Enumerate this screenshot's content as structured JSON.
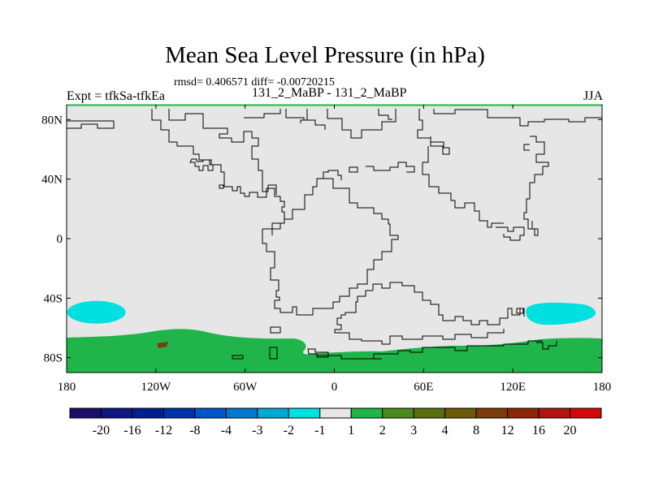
{
  "chart_data": {
    "type": "heatmap",
    "title": "Mean Sea Level Pressure (in hPa)",
    "stats_label": "rmsd= 0.406571 diff= -0.00720215",
    "left_label": "Expt = tfkSa-tfkEa",
    "center_label": "131_2_MaBP - 131_2_MaBP",
    "right_label": "JJA",
    "x_axis": {
      "range": [
        -180,
        180
      ],
      "ticks": [
        {
          "value": -180,
          "label": "180"
        },
        {
          "value": -120,
          "label": "120W"
        },
        {
          "value": -60,
          "label": "60W"
        },
        {
          "value": 0,
          "label": "0"
        },
        {
          "value": 60,
          "label": "60E"
        },
        {
          "value": 120,
          "label": "120E"
        },
        {
          "value": 180,
          "label": "180"
        }
      ]
    },
    "y_axis": {
      "range": [
        -90,
        90
      ],
      "ticks": [
        {
          "value": 80,
          "label": "80N"
        },
        {
          "value": 40,
          "label": "40N"
        },
        {
          "value": 0,
          "label": "0"
        },
        {
          "value": -40,
          "label": "40S"
        },
        {
          "value": -80,
          "label": "80S"
        }
      ]
    },
    "colorbar": {
      "colors": [
        "#1b0c6a",
        "#0f1680",
        "#00208f",
        "#0032a8",
        "#0055c8",
        "#0078d0",
        "#00a8d6",
        "#00e0e0",
        "#e6e6e6",
        "#1fb54a",
        "#4a8a20",
        "#5b6e0f",
        "#6d5a05",
        "#7d3a0a",
        "#8a2608",
        "#b01512",
        "#d00a0a"
      ],
      "labels": [
        "-20",
        "-16",
        "-12",
        "-8",
        "-4",
        "-3",
        "-2",
        "-1",
        "1",
        "2",
        "3",
        "4",
        "8",
        "12",
        "16",
        "20"
      ]
    },
    "anomalies": [
      {
        "region": "south pacific",
        "lon": -160,
        "lat": -50,
        "level": "-2 to -1",
        "color": "#00e0e0"
      },
      {
        "region": "southwest pacific",
        "lon": 155,
        "lat": -50,
        "level": "-2 to -1",
        "color": "#00e0e0"
      },
      {
        "region": "antarctica / southern ocean",
        "lat_max": -66,
        "level": "1 to 2",
        "color": "#1fb54a"
      },
      {
        "region": "antarctic interior spot",
        "lon": -118,
        "lat": -78,
        "level": "8 to 12",
        "color": "#7d3a0a"
      }
    ],
    "background_level": "-1 to 1",
    "background_color": "#e6e6e6"
  }
}
